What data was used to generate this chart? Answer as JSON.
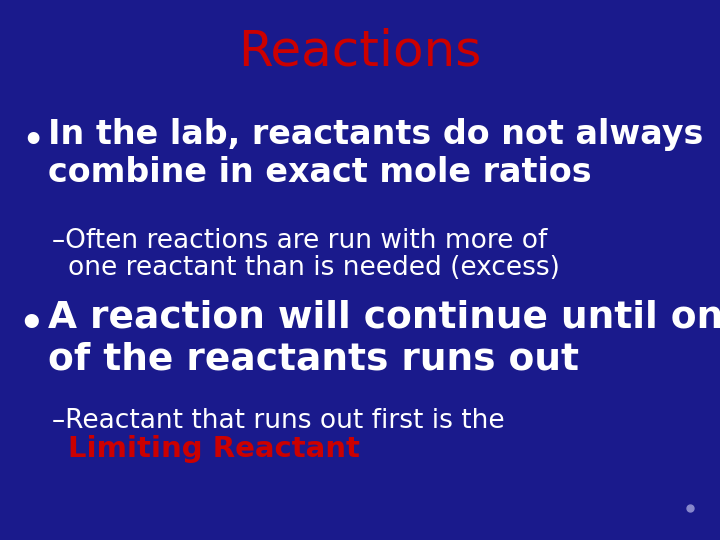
{
  "title": "Reactions",
  "title_color": "#cc0000",
  "title_fontsize": 36,
  "background_color": "#1a1a8c",
  "text_color_white": "#ffffff",
  "text_color_red": "#cc0000",
  "bullet1_line1": "In the lab, reactants do not always",
  "bullet1_line2": "combine in exact mole ratios",
  "bullet1_fontsize": 24,
  "sub1_line1": "–Often reactions are run with more of",
  "sub1_line2": "one reactant than is needed (excess)",
  "sub1_fontsize": 19,
  "bullet2_line1": "A reaction will continue until one",
  "bullet2_line2": "of the reactants runs out",
  "bullet2_fontsize": 27,
  "sub2_line1": "–Reactant that runs out first is the",
  "sub2_line2": "Limiting Reactant",
  "sub2_fontsize": 19,
  "dot_color": "#8888cc"
}
